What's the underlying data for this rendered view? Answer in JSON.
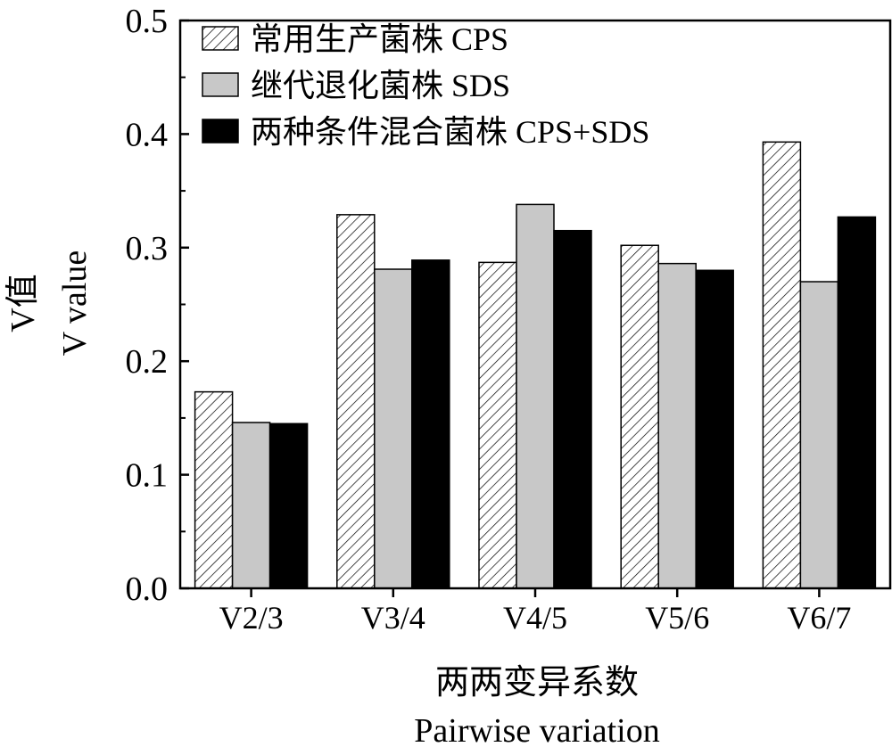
{
  "chart_data": {
    "type": "bar",
    "title": "",
    "xlabel": [
      "两两变异系数",
      "Pairwise variation"
    ],
    "ylabel": [
      "V值",
      "V value"
    ],
    "ylim": [
      0,
      0.5
    ],
    "yticks": [
      "0.0",
      "0.1",
      "0.2",
      "0.3",
      "0.4",
      "0.5"
    ],
    "categories": [
      "V2/3",
      "V3/4",
      "V4/5",
      "V5/6",
      "V6/7"
    ],
    "legend_position": "top-left",
    "series": [
      {
        "name": "常用生产菌株 CPS",
        "values": [
          0.173,
          0.329,
          0.287,
          0.302,
          0.393
        ],
        "pattern": "hatch",
        "color": "#ffffff"
      },
      {
        "name": "继代退化菌株 SDS",
        "values": [
          0.146,
          0.281,
          0.338,
          0.286,
          0.27
        ],
        "pattern": "solid",
        "color": "#c8c8c8"
      },
      {
        "name": "两种条件混合菌株 CPS+SDS",
        "values": [
          0.145,
          0.289,
          0.315,
          0.28,
          0.327
        ],
        "pattern": "solid",
        "color": "#000000"
      }
    ]
  }
}
